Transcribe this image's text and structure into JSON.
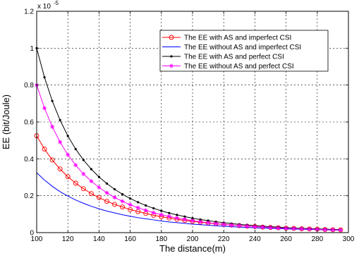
{
  "chart_data": {
    "type": "line",
    "xlabel": "The distance(m)",
    "ylabel": "EE (bit/Joule)",
    "y_multiplier_base": "x 10",
    "y_multiplier_exp": "-5",
    "xlim": [
      100,
      300
    ],
    "ylim": [
      0,
      1.2
    ],
    "x_ticks": [
      "100",
      "120",
      "140",
      "160",
      "180",
      "200",
      "220",
      "240",
      "260",
      "280",
      "300"
    ],
    "y_ticks": [
      "0",
      "0.2",
      "0.4",
      "0.6",
      "0.8",
      "1",
      "1.2"
    ],
    "grid": true,
    "legend_position": "top-right",
    "x": [
      100,
      105,
      110,
      115,
      120,
      125,
      130,
      135,
      140,
      145,
      150,
      155,
      160,
      165,
      170,
      175,
      180,
      185,
      190,
      195,
      200,
      205,
      210,
      215,
      220,
      225,
      230,
      235,
      240,
      245,
      250,
      255,
      260,
      265,
      270,
      275,
      280,
      285,
      290,
      295
    ],
    "series": [
      {
        "name": "The EE with AS and imperfect CSI",
        "color": "#ff0000",
        "marker": "circle",
        "values": [
          0.525,
          0.453,
          0.394,
          0.345,
          0.303,
          0.268,
          0.238,
          0.212,
          0.19,
          0.17,
          0.153,
          0.139,
          0.125,
          0.114,
          0.104,
          0.094,
          0.086,
          0.079,
          0.072,
          0.066,
          0.061,
          0.056,
          0.052,
          0.048,
          0.044,
          0.041,
          0.038,
          0.035,
          0.033,
          0.03,
          0.028,
          0.026,
          0.024,
          0.023,
          0.021,
          0.02,
          0.019,
          0.017,
          0.016,
          0.015
        ]
      },
      {
        "name": "The EE without AS and imperfect CSI",
        "color": "#0000ff",
        "marker": "none",
        "values": [
          0.325,
          0.285,
          0.251,
          0.222,
          0.198,
          0.177,
          0.159,
          0.143,
          0.129,
          0.117,
          0.107,
          0.097,
          0.089,
          0.081,
          0.075,
          0.069,
          0.063,
          0.058,
          0.054,
          0.05,
          0.046,
          0.043,
          0.04,
          0.037,
          0.035,
          0.032,
          0.03,
          0.028,
          0.026,
          0.025,
          0.023,
          0.022,
          0.02,
          0.019,
          0.018,
          0.017,
          0.016,
          0.015,
          0.014,
          0.013
        ]
      },
      {
        "name": "The EE with AS and perfect CSI",
        "color": "#000000",
        "marker": "dot",
        "values": [
          1.0,
          0.842,
          0.714,
          0.61,
          0.524,
          0.453,
          0.394,
          0.344,
          0.302,
          0.266,
          0.235,
          0.208,
          0.185,
          0.165,
          0.147,
          0.132,
          0.118,
          0.106,
          0.096,
          0.087,
          0.078,
          0.071,
          0.065,
          0.059,
          0.054,
          0.049,
          0.045,
          0.041,
          0.038,
          0.035,
          0.032,
          0.03,
          0.027,
          0.025,
          0.023,
          0.022,
          0.02,
          0.019,
          0.017,
          0.016
        ]
      },
      {
        "name": "The EE without AS and perfect CSI",
        "color": "#ff00ff",
        "marker": "star",
        "values": [
          0.8,
          0.675,
          0.574,
          0.491,
          0.422,
          0.366,
          0.318,
          0.279,
          0.245,
          0.216,
          0.191,
          0.17,
          0.151,
          0.135,
          0.121,
          0.108,
          0.097,
          0.088,
          0.079,
          0.072,
          0.065,
          0.059,
          0.054,
          0.049,
          0.045,
          0.041,
          0.038,
          0.035,
          0.032,
          0.03,
          0.027,
          0.025,
          0.023,
          0.022,
          0.02,
          0.019,
          0.017,
          0.016,
          0.015,
          0.014
        ]
      }
    ]
  }
}
